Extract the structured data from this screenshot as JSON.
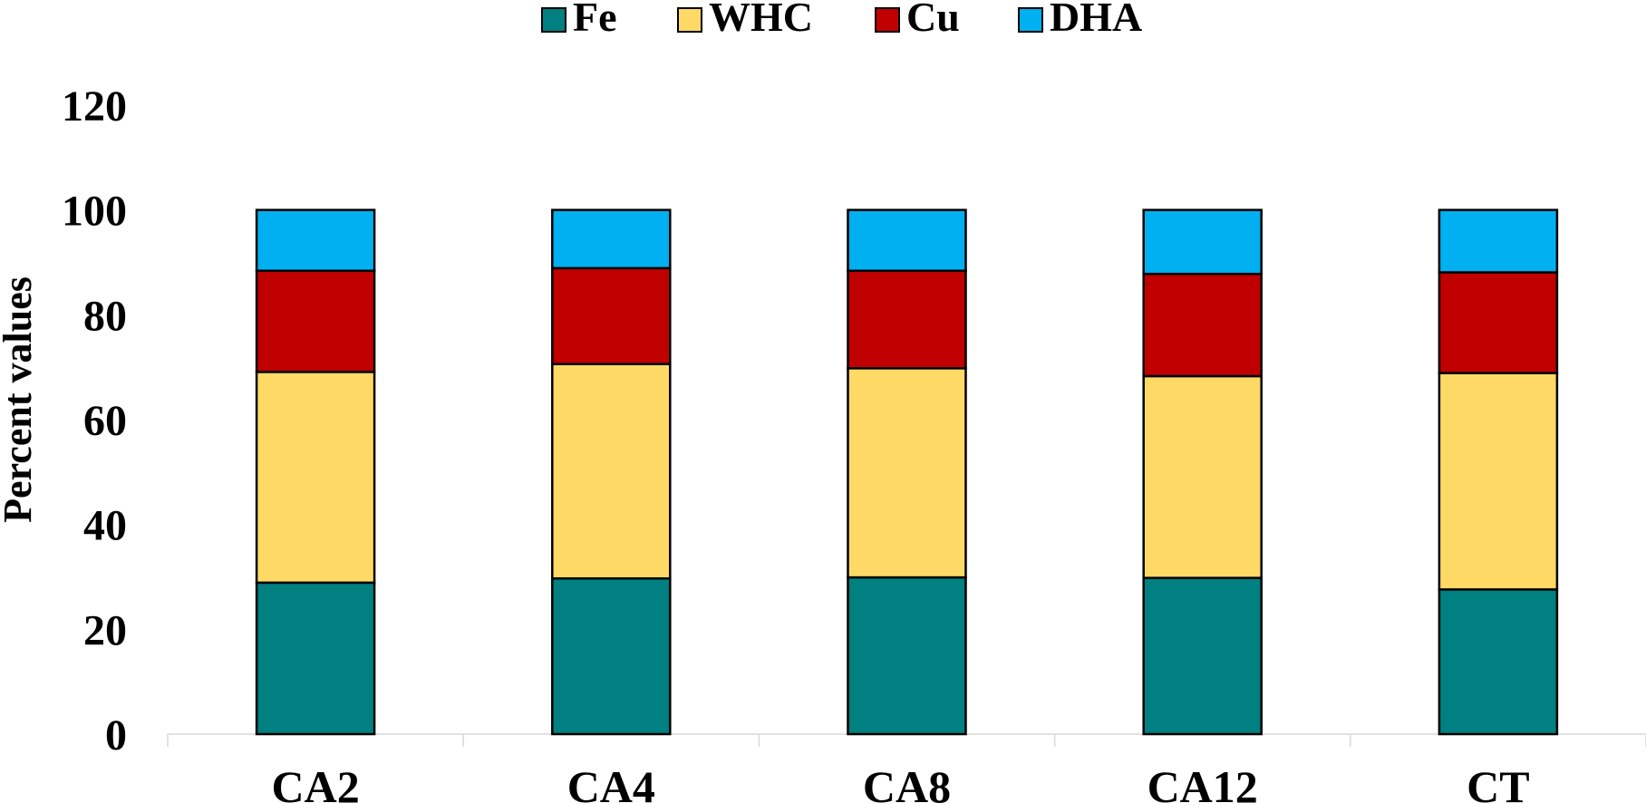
{
  "chart_data": {
    "type": "bar",
    "stacked": true,
    "categories": [
      "CA2",
      "CA4",
      "CA8",
      "CA12",
      "CT"
    ],
    "series": [
      {
        "name": "Fe",
        "color": "#008080",
        "values": [
          28.9,
          29.7,
          29.9,
          29.8,
          27.6
        ]
      },
      {
        "name": "WHC",
        "color": "#FFD966",
        "values": [
          40.2,
          40.9,
          39.9,
          38.5,
          41.3
        ]
      },
      {
        "name": "Cu",
        "color": "#C00000",
        "values": [
          19.3,
          18.3,
          18.6,
          19.5,
          19.2
        ]
      },
      {
        "name": "DHA",
        "color": "#00B0F0",
        "values": [
          11.6,
          11.1,
          11.6,
          12.2,
          11.9
        ]
      }
    ],
    "ylabel": "Percent values",
    "xlabel": "",
    "ylim": [
      0,
      120
    ],
    "yticks": [
      "0",
      "20",
      "40",
      "60",
      "80",
      "100",
      "120"
    ],
    "grid": false,
    "legend_position": "top"
  }
}
